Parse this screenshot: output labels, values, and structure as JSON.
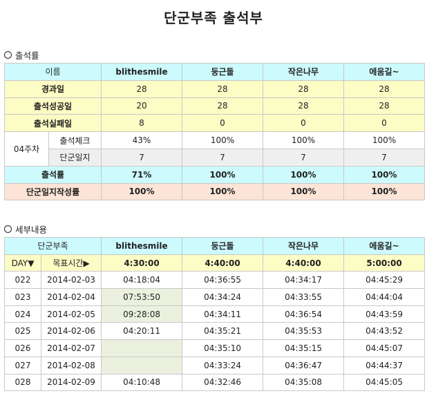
{
  "title": "단군부족 출석부",
  "attendance": {
    "section_label": "출석률",
    "header": [
      "이름",
      "blithesmile",
      "둥근돌",
      "작은나무",
      "에움길~"
    ],
    "rows": [
      {
        "label": "경과일",
        "values": [
          "28",
          "28",
          "28",
          "28"
        ]
      },
      {
        "label": "출석성공일",
        "values": [
          "20",
          "28",
          "28",
          "28"
        ]
      },
      {
        "label": "출석실패일",
        "values": [
          "8",
          "0",
          "0",
          "0"
        ]
      }
    ],
    "week_label": "04주차",
    "week_rows": [
      {
        "label": "출석체크",
        "values": [
          "43%",
          "100%",
          "100%",
          "100%"
        ]
      },
      {
        "label": "단군일지",
        "values": [
          "7",
          "7",
          "7",
          "7"
        ]
      }
    ],
    "rate_row": {
      "label": "출석률",
      "values": [
        "71%",
        "100%",
        "100%",
        "100%"
      ]
    },
    "journal_rate_row": {
      "label": "단군일지작성률",
      "values": [
        "100%",
        "100%",
        "100%",
        "100%"
      ]
    }
  },
  "details": {
    "section_label": "세부내용",
    "header": [
      "단군부족",
      "blithesmile",
      "둥근돌",
      "작은나무",
      "에움길~"
    ],
    "day_label": "DAY▼",
    "target_label": "목표시간▶",
    "targets": [
      "4:30:00",
      "4:40:00",
      "4:40:00",
      "5:00:00"
    ],
    "rows": [
      {
        "day": "022",
        "date": "2014-02-03",
        "times": [
          "04:18:04",
          "04:36:55",
          "04:34:17",
          "04:45:29"
        ],
        "marked": [
          false,
          false,
          false,
          false
        ]
      },
      {
        "day": "023",
        "date": "2014-02-04",
        "times": [
          "07:53:50",
          "04:34:24",
          "04:33:55",
          "04:44:04"
        ],
        "marked": [
          true,
          false,
          false,
          false
        ]
      },
      {
        "day": "024",
        "date": "2014-02-05",
        "times": [
          "09:28:08",
          "04:34:11",
          "04:36:54",
          "04:43:59"
        ],
        "marked": [
          true,
          false,
          false,
          false
        ]
      },
      {
        "day": "025",
        "date": "2014-02-06",
        "times": [
          "04:20:11",
          "04:35:21",
          "04:35:53",
          "04:43:52"
        ],
        "marked": [
          false,
          false,
          false,
          false
        ]
      },
      {
        "day": "026",
        "date": "2014-02-07",
        "times": [
          "",
          "04:35:10",
          "04:35:15",
          "04:45:07"
        ],
        "marked": [
          true,
          false,
          false,
          false
        ]
      },
      {
        "day": "027",
        "date": "2014-02-08",
        "times": [
          "",
          "04:33:24",
          "04:36:47",
          "04:44:37"
        ],
        "marked": [
          true,
          false,
          false,
          false
        ]
      },
      {
        "day": "028",
        "date": "2014-02-09",
        "times": [
          "04:10:48",
          "04:32:46",
          "04:35:08",
          "04:45:05"
        ],
        "marked": [
          false,
          false,
          false,
          false
        ]
      }
    ]
  }
}
